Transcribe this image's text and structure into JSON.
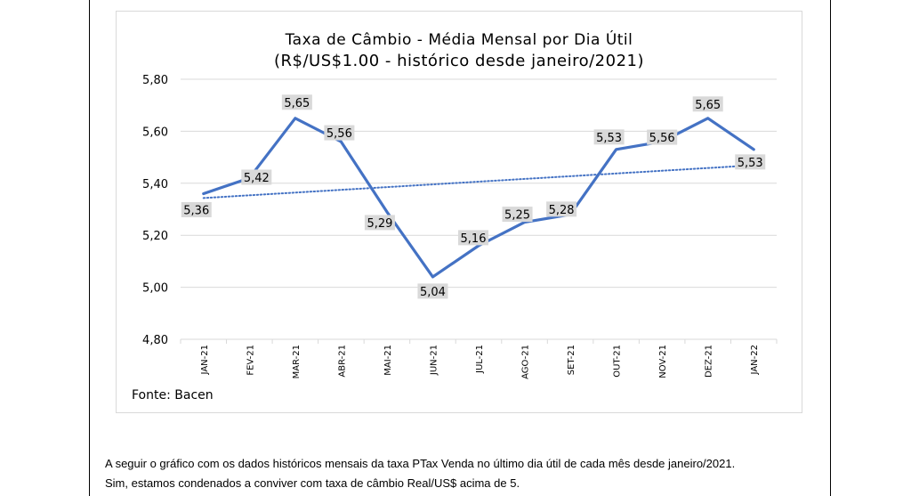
{
  "chart_data": {
    "type": "line",
    "title": "Taxa de Câmbio - Média Mensal por Dia Útil",
    "subtitle": "(R$/US$1.00 - histórico desde janeiro/2021)",
    "categories": [
      "JAN-21",
      "FEV-21",
      "MAR-21",
      "ABR-21",
      "MAI-21",
      "JUN-21",
      "JUL-21",
      "AGO-21",
      "SET-21",
      "OUT-21",
      "NOV-21",
      "DEZ-21",
      "JAN-22"
    ],
    "series": [
      {
        "values": [
          5.36,
          5.42,
          5.65,
          5.56,
          5.29,
          5.04,
          5.16,
          5.25,
          5.28,
          5.53,
          5.56,
          5.65,
          5.53
        ],
        "labels": [
          "5,36",
          "5,42",
          "5,65",
          "5,56",
          "5,29",
          "5,04",
          "5,16",
          "5,25",
          "5,28",
          "5,53",
          "5,56",
          "5,65",
          "5,53"
        ],
        "color": "#4472c4",
        "style": "solid"
      },
      {
        "trendline": "linear",
        "color": "#4472c4",
        "style": "dotted"
      }
    ],
    "yticks": [
      "4,80",
      "5,00",
      "5,20",
      "5,40",
      "5,60",
      "5,80"
    ],
    "ylim": [
      4.8,
      5.8
    ],
    "grid": true,
    "legend": "none",
    "label_background": "#d9d9d9"
  },
  "source_text": "Fonte: Bacen",
  "caption": {
    "line1": "A seguir o gráfico com os dados históricos mensais da taxa PTax Venda no último dia útil de cada mês desde janeiro/2021.",
    "line2": "Sim, estamos condenados a conviver com taxa de câmbio Real/US$ acima de 5."
  }
}
